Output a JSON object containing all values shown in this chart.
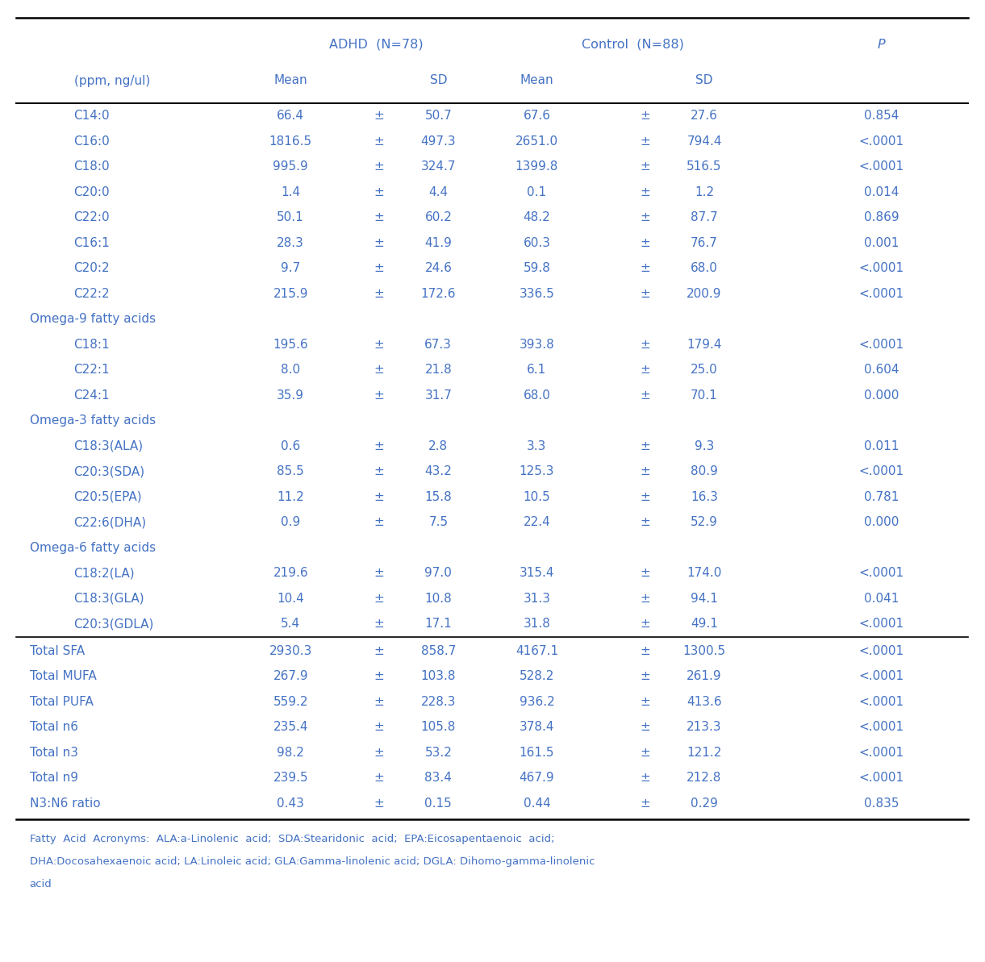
{
  "blue": "#4472c4",
  "bg_color": "#ffffff",
  "header1": "ADHD  (N=78)",
  "header2": "Control  (N=88)",
  "header3": "P",
  "subheader_col0": "(ppm, ng/ul)",
  "subheader_mean": "Mean",
  "subheader_sd": "SD",
  "col_x": {
    "label": 0.03,
    "label_indent": 0.075,
    "adhd_mean": 0.295,
    "pm1": 0.385,
    "adhd_sd": 0.445,
    "ctrl_mean": 0.545,
    "pm2": 0.655,
    "ctrl_sd": 0.715,
    "p": 0.895
  },
  "rows": [
    {
      "label": "C14:0",
      "indent": true,
      "section": false,
      "adhd_mean": "66.4",
      "adhd_sd": "50.7",
      "ctrl_mean": "67.6",
      "ctrl_sd": "27.6",
      "p": "0.854"
    },
    {
      "label": "C16:0",
      "indent": true,
      "section": false,
      "adhd_mean": "1816.5",
      "adhd_sd": "497.3",
      "ctrl_mean": "2651.0",
      "ctrl_sd": "794.4",
      "p": "<.0001"
    },
    {
      "label": "C18:0",
      "indent": true,
      "section": false,
      "adhd_mean": "995.9",
      "adhd_sd": "324.7",
      "ctrl_mean": "1399.8",
      "ctrl_sd": "516.5",
      "p": "<.0001"
    },
    {
      "label": "C20:0",
      "indent": true,
      "section": false,
      "adhd_mean": "1.4",
      "adhd_sd": "4.4",
      "ctrl_mean": "0.1",
      "ctrl_sd": "1.2",
      "p": "0.014"
    },
    {
      "label": "C22:0",
      "indent": true,
      "section": false,
      "adhd_mean": "50.1",
      "adhd_sd": "60.2",
      "ctrl_mean": "48.2",
      "ctrl_sd": "87.7",
      "p": "0.869"
    },
    {
      "label": "C16:1",
      "indent": true,
      "section": false,
      "adhd_mean": "28.3",
      "adhd_sd": "41.9",
      "ctrl_mean": "60.3",
      "ctrl_sd": "76.7",
      "p": "0.001"
    },
    {
      "label": "C20:2",
      "indent": true,
      "section": false,
      "adhd_mean": "9.7",
      "adhd_sd": "24.6",
      "ctrl_mean": "59.8",
      "ctrl_sd": "68.0",
      "p": "<.0001"
    },
    {
      "label": "C22:2",
      "indent": true,
      "section": false,
      "adhd_mean": "215.9",
      "adhd_sd": "172.6",
      "ctrl_mean": "336.5",
      "ctrl_sd": "200.9",
      "p": "<.0001"
    },
    {
      "label": "Omega-9 fatty acids",
      "indent": false,
      "section": true,
      "adhd_mean": "",
      "adhd_sd": "",
      "ctrl_mean": "",
      "ctrl_sd": "",
      "p": ""
    },
    {
      "label": "C18:1",
      "indent": true,
      "section": false,
      "adhd_mean": "195.6",
      "adhd_sd": "67.3",
      "ctrl_mean": "393.8",
      "ctrl_sd": "179.4",
      "p": "<.0001"
    },
    {
      "label": "C22:1",
      "indent": true,
      "section": false,
      "adhd_mean": "8.0",
      "adhd_sd": "21.8",
      "ctrl_mean": "6.1",
      "ctrl_sd": "25.0",
      "p": "0.604"
    },
    {
      "label": "C24:1",
      "indent": true,
      "section": false,
      "adhd_mean": "35.9",
      "adhd_sd": "31.7",
      "ctrl_mean": "68.0",
      "ctrl_sd": "70.1",
      "p": "0.000"
    },
    {
      "label": "Omega-3 fatty acids",
      "indent": false,
      "section": true,
      "adhd_mean": "",
      "adhd_sd": "",
      "ctrl_mean": "",
      "ctrl_sd": "",
      "p": ""
    },
    {
      "label": "C18:3(ALA)",
      "indent": true,
      "section": false,
      "adhd_mean": "0.6",
      "adhd_sd": "2.8",
      "ctrl_mean": "3.3",
      "ctrl_sd": "9.3",
      "p": "0.011"
    },
    {
      "label": "C20:3(SDA)",
      "indent": true,
      "section": false,
      "adhd_mean": "85.5",
      "adhd_sd": "43.2",
      "ctrl_mean": "125.3",
      "ctrl_sd": "80.9",
      "p": "<.0001"
    },
    {
      "label": "C20:5(EPA)",
      "indent": true,
      "section": false,
      "adhd_mean": "11.2",
      "adhd_sd": "15.8",
      "ctrl_mean": "10.5",
      "ctrl_sd": "16.3",
      "p": "0.781"
    },
    {
      "label": "C22:6(DHA)",
      "indent": true,
      "section": false,
      "adhd_mean": "0.9",
      "adhd_sd": "7.5",
      "ctrl_mean": "22.4",
      "ctrl_sd": "52.9",
      "p": "0.000"
    },
    {
      "label": "Omega-6 fatty acids",
      "indent": false,
      "section": true,
      "adhd_mean": "",
      "adhd_sd": "",
      "ctrl_mean": "",
      "ctrl_sd": "",
      "p": ""
    },
    {
      "label": "C18:2(LA)",
      "indent": true,
      "section": false,
      "adhd_mean": "219.6",
      "adhd_sd": "97.0",
      "ctrl_mean": "315.4",
      "ctrl_sd": "174.0",
      "p": "<.0001"
    },
    {
      "label": "C18:3(GLA)",
      "indent": true,
      "section": false,
      "adhd_mean": "10.4",
      "adhd_sd": "10.8",
      "ctrl_mean": "31.3",
      "ctrl_sd": "94.1",
      "p": "0.041"
    },
    {
      "label": "C20:3(GDLA)",
      "indent": true,
      "section": false,
      "adhd_mean": "5.4",
      "adhd_sd": "17.1",
      "ctrl_mean": "31.8",
      "ctrl_sd": "49.1",
      "p": "<.0001"
    },
    {
      "label": "Total SFA",
      "indent": false,
      "section": false,
      "total": true,
      "adhd_mean": "2930.3",
      "adhd_sd": "858.7",
      "ctrl_mean": "4167.1",
      "ctrl_sd": "1300.5",
      "p": "<.0001"
    },
    {
      "label": "Total MUFA",
      "indent": false,
      "section": false,
      "total": true,
      "adhd_mean": "267.9",
      "adhd_sd": "103.8",
      "ctrl_mean": "528.2",
      "ctrl_sd": "261.9",
      "p": "<.0001"
    },
    {
      "label": "Total PUFA",
      "indent": false,
      "section": false,
      "total": true,
      "adhd_mean": "559.2",
      "adhd_sd": "228.3",
      "ctrl_mean": "936.2",
      "ctrl_sd": "413.6",
      "p": "<.0001"
    },
    {
      "label": "Total n6",
      "indent": false,
      "section": false,
      "total": true,
      "adhd_mean": "235.4",
      "adhd_sd": "105.8",
      "ctrl_mean": "378.4",
      "ctrl_sd": "213.3",
      "p": "<.0001"
    },
    {
      "label": "Total n3",
      "indent": false,
      "section": false,
      "total": true,
      "adhd_mean": "98.2",
      "adhd_sd": "53.2",
      "ctrl_mean": "161.5",
      "ctrl_sd": "121.2",
      "p": "<.0001"
    },
    {
      "label": "Total n9",
      "indent": false,
      "section": false,
      "total": true,
      "adhd_mean": "239.5",
      "adhd_sd": "83.4",
      "ctrl_mean": "467.9",
      "ctrl_sd": "212.8",
      "p": "<.0001"
    },
    {
      "label": "N3:N6 ratio",
      "indent": false,
      "section": false,
      "total": true,
      "adhd_mean": "0.43",
      "adhd_sd": "0.15",
      "ctrl_mean": "0.44",
      "ctrl_sd": "0.29",
      "p": "0.835"
    }
  ],
  "footnote_lines": [
    "Fatty  Acid  Acronyms:  ALA:a-Linolenic  acid;  SDA:Stearidonic  acid;  EPA:Eicosapentaenoic  acid;",
    "DHA:Docosahexaenoic acid; LA:Linoleic acid; GLA:Gamma-linolenic acid; DGLA: Dihomo-gamma-linolenic",
    "acid"
  ]
}
